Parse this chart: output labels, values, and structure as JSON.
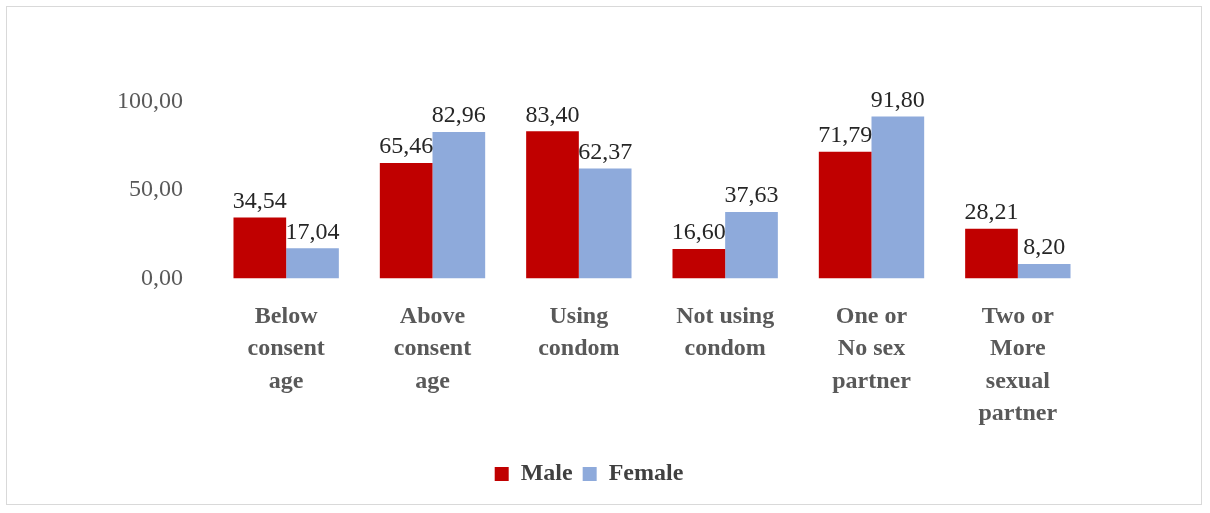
{
  "chart_data": {
    "type": "bar",
    "categories": [
      "Below consent age",
      "Above consent age",
      "Using condom",
      "Not using condom",
      "One or No sex partner",
      "Two or More sexual partner"
    ],
    "series": [
      {
        "name": "Male",
        "color": "#c00000",
        "values": [
          34.54,
          65.46,
          83.4,
          16.6,
          71.79,
          28.21
        ],
        "value_labels": [
          "34,54",
          "65,46",
          "83,40",
          "16,60",
          "71,79",
          "28,21"
        ]
      },
      {
        "name": "Female",
        "color": "#8eaadb",
        "values": [
          17.04,
          82.96,
          62.37,
          37.63,
          91.8,
          8.2
        ],
        "value_labels": [
          "17,04",
          "82,96",
          "62,37",
          "37,63",
          "91,80",
          "8,20"
        ]
      }
    ],
    "ylim": [
      0,
      100
    ],
    "yticks": [
      {
        "value": 0,
        "label": "0,00"
      },
      {
        "value": 50,
        "label": "50,00"
      },
      {
        "value": 100,
        "label": "100,00"
      }
    ],
    "grid": false,
    "legend": "bottom"
  }
}
